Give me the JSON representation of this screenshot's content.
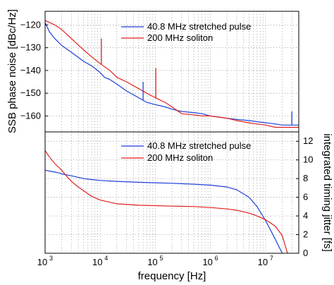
{
  "chart_data": [
    {
      "type": "line",
      "ylabel": "SSB phase noise [dBc/Hz]",
      "xscale": "log",
      "xlim": [
        1000,
        40000000
      ],
      "ylim": [
        -167,
        -114
      ],
      "yticks": [
        -160,
        -150,
        -140,
        -130,
        -120
      ],
      "grid": true,
      "legend": "top-right",
      "series": [
        {
          "name": "40.8 MHz stretched pulse",
          "color": "#1f3fd8",
          "x": [
            1000,
            1200,
            1500,
            2000,
            3000,
            5000,
            7000,
            9000,
            10000,
            12000,
            15000,
            20000,
            30000,
            50000,
            70000,
            100000,
            150000,
            200000,
            300000,
            500000,
            700000,
            1000000,
            2000000,
            3000000,
            5000000,
            7000000,
            10000000,
            15000000,
            20000000,
            25000000,
            30000000,
            40000000
          ],
          "y": [
            -119,
            -123,
            -126,
            -129,
            -132,
            -136,
            -138,
            -140,
            -141,
            -143,
            -144,
            -146,
            -149,
            -152,
            -154,
            -155,
            -156,
            -157,
            -158,
            -158.5,
            -159,
            -160,
            -161,
            -161.5,
            -162,
            -162.5,
            -163,
            -163.5,
            -164,
            -164,
            -164,
            -164
          ]
        },
        {
          "name": "200 MHz soliton",
          "color": "#e02020",
          "x": [
            1000,
            1500,
            2000,
            3000,
            5000,
            7000,
            10000,
            15000,
            20000,
            30000,
            50000,
            70000,
            100000,
            150000,
            200000,
            300000,
            500000,
            700000,
            1000000,
            2000000,
            3000000,
            5000000,
            7000000,
            10000000,
            15000000,
            20000000,
            25000000,
            40000000
          ],
          "y": [
            -118,
            -120,
            -122,
            -126,
            -131,
            -134,
            -137,
            -140,
            -143,
            -145,
            -148,
            -150,
            -152,
            -154,
            -156,
            -159,
            -159.5,
            -160,
            -160,
            -161,
            -162,
            -163,
            -163.5,
            -164,
            -165,
            -165,
            -165,
            -165
          ]
        }
      ],
      "annotations": [
        {
          "series": "200 MHz soliton",
          "x": 10500,
          "y": -126
        },
        {
          "series": "200 MHz soliton",
          "x": 102000,
          "y": -139
        },
        {
          "series": "40.8 MHz stretched pulse",
          "x": 10000,
          "y": -141
        },
        {
          "series": "40.8 MHz stretched pulse",
          "x": 60000,
          "y": -145
        },
        {
          "series": "40.8 MHz stretched pulse",
          "x": 30000000,
          "y": -158
        }
      ]
    },
    {
      "type": "line",
      "xlabel": "frequency [Hz]",
      "ylabel": "integrated timing jitter [fs]",
      "xscale": "log",
      "xlim": [
        1000,
        40000000
      ],
      "ylim": [
        0,
        13
      ],
      "yticks": [
        0,
        2,
        4,
        6,
        8,
        10,
        12
      ],
      "xticks": [
        1000,
        10000,
        100000,
        1000000,
        10000000
      ],
      "xtick_labels": [
        {
          "base": "10",
          "exp": "3"
        },
        {
          "base": "10",
          "exp": "4"
        },
        {
          "base": "10",
          "exp": "5"
        },
        {
          "base": "10",
          "exp": "6"
        },
        {
          "base": "10",
          "exp": "7"
        }
      ],
      "grid": true,
      "legend": "top-right",
      "series": [
        {
          "name": "40.8 MHz stretched pulse",
          "color": "#1f3fd8",
          "x": [
            1000,
            1200,
            1500,
            1800,
            2000,
            3000,
            5000,
            7000,
            10000,
            20000,
            50000,
            100000,
            200000,
            500000,
            1000000,
            2000000,
            3000000,
            5000000,
            7000000,
            10000000,
            15000000,
            20000000
          ],
          "y": [
            8.9,
            8.8,
            8.7,
            8.6,
            8.5,
            8.3,
            8.0,
            7.9,
            7.8,
            7.7,
            7.6,
            7.55,
            7.5,
            7.4,
            7.3,
            7.1,
            6.8,
            6.0,
            5.0,
            3.5,
            1.5,
            0
          ]
        },
        {
          "name": "200 MHz soliton",
          "color": "#e02020",
          "x": [
            1000,
            1200,
            1500,
            2000,
            2500,
            3000,
            4000,
            5000,
            7000,
            10000,
            20000,
            50000,
            100000,
            200000,
            500000,
            1000000,
            2000000,
            3000000,
            5000000,
            7000000,
            10000000,
            15000000,
            20000000,
            25000000
          ],
          "y": [
            11.0,
            10.3,
            9.6,
            8.9,
            8.2,
            7.7,
            7.1,
            6.7,
            6.1,
            5.7,
            5.3,
            5.15,
            5.1,
            5.05,
            5.0,
            4.9,
            4.75,
            4.6,
            4.3,
            4.0,
            3.6,
            2.9,
            1.9,
            0
          ]
        }
      ]
    }
  ]
}
